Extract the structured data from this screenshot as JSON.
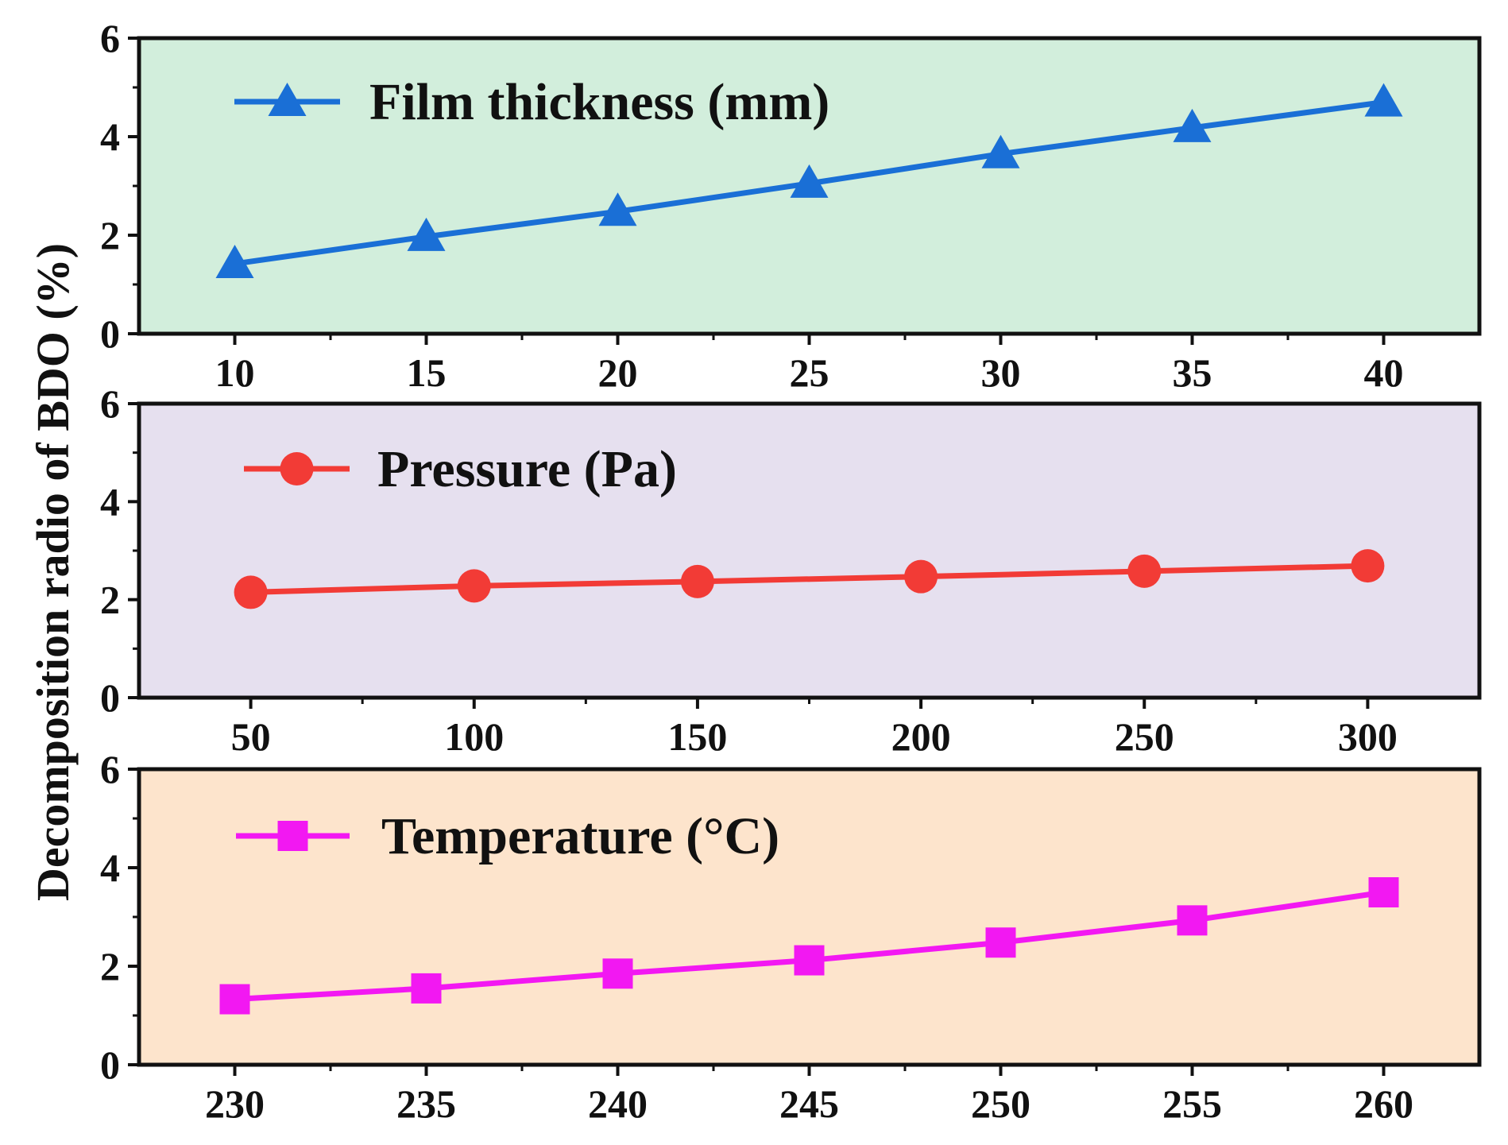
{
  "ylabel": "Decomposition radio of BDO (%)",
  "chart_data": [
    {
      "type": "line",
      "name": "film-thickness",
      "background": "#d2eedc",
      "series": [
        {
          "name": "Film thickness (mm)",
          "color": "#1a6fd6",
          "marker": "triangle",
          "x": [
            10,
            15,
            20,
            25,
            30,
            35,
            40
          ],
          "values": [
            1.42,
            1.97,
            2.48,
            3.05,
            3.65,
            4.18,
            4.7
          ]
        }
      ],
      "xticks": [
        10,
        15,
        20,
        25,
        30,
        35,
        40
      ],
      "xlim": [
        7.5,
        42.5
      ],
      "yticks": [
        0,
        2,
        4,
        6
      ],
      "ylim": [
        0,
        6
      ],
      "legend_position": "top-left"
    },
    {
      "type": "line",
      "name": "pressure",
      "background": "#e6e0ef",
      "series": [
        {
          "name": "Pressure (Pa)",
          "color": "#f23b36",
          "marker": "circle",
          "x": [
            50,
            100,
            150,
            200,
            250,
            300
          ],
          "values": [
            2.15,
            2.28,
            2.37,
            2.47,
            2.58,
            2.69
          ]
        }
      ],
      "xticks": [
        50,
        100,
        150,
        200,
        250,
        300
      ],
      "xlim": [
        25,
        325
      ],
      "yticks": [
        0,
        2,
        4,
        6
      ],
      "ylim": [
        0,
        6
      ],
      "legend_position": "top-left"
    },
    {
      "type": "line",
      "name": "temperature",
      "background": "#fde4cc",
      "series": [
        {
          "name": "Temperature (°C)",
          "color": "#f218f2",
          "marker": "square",
          "x": [
            230,
            235,
            240,
            245,
            250,
            255,
            260
          ],
          "values": [
            1.33,
            1.55,
            1.85,
            2.12,
            2.48,
            2.93,
            3.5
          ]
        }
      ],
      "xticks": [
        230,
        235,
        240,
        245,
        250,
        255,
        260
      ],
      "xlim": [
        227.5,
        262.5
      ],
      "yticks": [
        0,
        2,
        4,
        6
      ],
      "ylim": [
        0,
        6
      ],
      "legend_position": "top-left"
    }
  ]
}
